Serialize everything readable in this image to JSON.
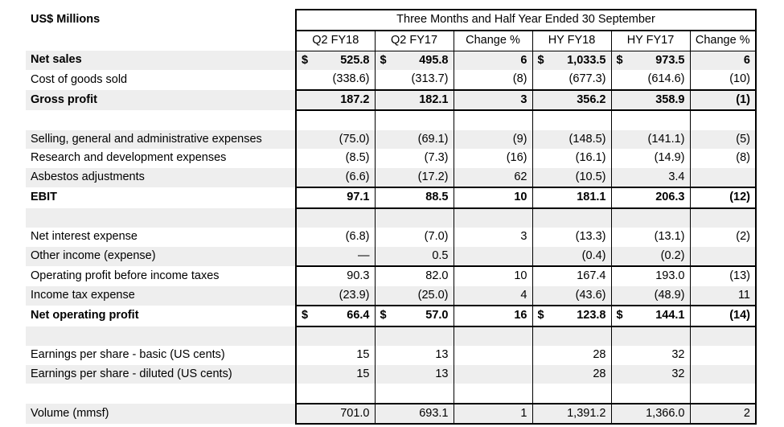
{
  "units_label": "US$ Millions",
  "period_header": "Three Months and Half Year Ended 30 September",
  "columns": [
    "Q2 FY18",
    "Q2 FY17",
    "Change %",
    "HY FY18",
    "HY FY17",
    "Change %"
  ],
  "rows": [
    {
      "label": "Net sales",
      "bold": true,
      "shade": true,
      "currency": true,
      "values": [
        "525.8",
        "495.8",
        "6",
        "1,033.5",
        "973.5",
        "6"
      ]
    },
    {
      "label": "Cost of goods sold",
      "bold": false,
      "shade": false,
      "values": [
        "(338.6)",
        "(313.7)",
        "(8)",
        "(677.3)",
        "(614.6)",
        "(10)"
      ]
    },
    {
      "label": "Gross profit",
      "bold": true,
      "shade": true,
      "rule_top": true,
      "values": [
        "187.2",
        "182.1",
        "3",
        "356.2",
        "358.9",
        "(1)"
      ]
    },
    {
      "label": "",
      "bold": false,
      "shade": false,
      "rule_top": true,
      "values": [
        "",
        "",
        "",
        "",
        "",
        ""
      ]
    },
    {
      "label": "Selling, general and administrative expenses",
      "bold": false,
      "shade": true,
      "values": [
        "(75.0)",
        "(69.1)",
        "(9)",
        "(148.5)",
        "(141.1)",
        "(5)"
      ]
    },
    {
      "label": "Research and development expenses",
      "bold": false,
      "shade": false,
      "values": [
        "(8.5)",
        "(7.3)",
        "(16)",
        "(16.1)",
        "(14.9)",
        "(8)"
      ]
    },
    {
      "label": "Asbestos adjustments",
      "bold": false,
      "shade": true,
      "values": [
        "(6.6)",
        "(17.2)",
        "62",
        "(10.5)",
        "3.4",
        ""
      ]
    },
    {
      "label": "EBIT",
      "bold": true,
      "shade": false,
      "rule_top": true,
      "values": [
        "97.1",
        "88.5",
        "10",
        "181.1",
        "206.3",
        "(12)"
      ]
    },
    {
      "label": "",
      "bold": false,
      "shade": true,
      "rule_top": true,
      "values": [
        "",
        "",
        "",
        "",
        "",
        ""
      ]
    },
    {
      "label": "Net interest expense",
      "bold": false,
      "shade": false,
      "values": [
        "(6.8)",
        "(7.0)",
        "3",
        "(13.3)",
        "(13.1)",
        "(2)"
      ]
    },
    {
      "label": "Other income (expense)",
      "bold": false,
      "shade": true,
      "values": [
        "—",
        "0.5",
        "",
        "(0.4)",
        "(0.2)",
        ""
      ]
    },
    {
      "label": "Operating profit before income taxes",
      "bold": false,
      "shade": false,
      "rule_top": true,
      "values": [
        "90.3",
        "82.0",
        "10",
        "167.4",
        "193.0",
        "(13)"
      ]
    },
    {
      "label": "Income tax expense",
      "bold": false,
      "shade": true,
      "values": [
        "(23.9)",
        "(25.0)",
        "4",
        "(43.6)",
        "(48.9)",
        "11"
      ]
    },
    {
      "label": "Net operating profit",
      "bold": true,
      "shade": false,
      "rule_top": true,
      "currency": true,
      "values": [
        "66.4",
        "57.0",
        "16",
        "123.8",
        "144.1",
        "(14)"
      ]
    },
    {
      "label": "",
      "bold": false,
      "shade": true,
      "rule_top": true,
      "values": [
        "",
        "",
        "",
        "",
        "",
        ""
      ]
    },
    {
      "label": "Earnings per share - basic (US cents)",
      "bold": false,
      "shade": false,
      "values": [
        "15",
        "13",
        "",
        "28",
        "32",
        ""
      ]
    },
    {
      "label": "Earnings per share - diluted (US cents)",
      "bold": false,
      "shade": true,
      "values": [
        "15",
        "13",
        "",
        "28",
        "32",
        ""
      ]
    },
    {
      "label": "",
      "bold": false,
      "shade": false,
      "values": [
        "",
        "",
        "",
        "",
        "",
        ""
      ]
    },
    {
      "label": "Volume (mmsf)",
      "bold": false,
      "shade": true,
      "rule_top": true,
      "last": true,
      "values": [
        "701.0",
        "693.1",
        "1",
        "1,391.2",
        "1,366.0",
        "2"
      ]
    }
  ],
  "currency_symbol": "$"
}
